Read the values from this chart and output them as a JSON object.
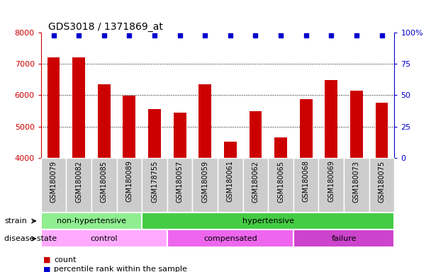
{
  "title": "GDS3018 / 1371869_at",
  "samples": [
    "GSM180079",
    "GSM180082",
    "GSM180085",
    "GSM180089",
    "GSM178755",
    "GSM180057",
    "GSM180059",
    "GSM180061",
    "GSM180062",
    "GSM180065",
    "GSM180068",
    "GSM180069",
    "GSM180073",
    "GSM180075"
  ],
  "counts": [
    7200,
    7200,
    6350,
    5980,
    5560,
    5450,
    6350,
    4510,
    5490,
    4650,
    5870,
    6490,
    6150,
    5770
  ],
  "percentile_ranks": [
    98,
    98,
    98,
    98,
    98,
    98,
    98,
    98,
    98,
    98,
    98,
    98,
    98,
    98
  ],
  "bar_color": "#cc0000",
  "dot_color": "#0000cc",
  "ylim_left": [
    4000,
    8000
  ],
  "ylim_right": [
    0,
    100
  ],
  "yticks_left": [
    4000,
    5000,
    6000,
    7000,
    8000
  ],
  "yticks_right": [
    0,
    25,
    50,
    75,
    100
  ],
  "right_tick_labels": [
    "0",
    "25",
    "50",
    "75",
    "100%"
  ],
  "grid_values": [
    5000,
    6000,
    7000
  ],
  "strain_groups": [
    {
      "label": "non-hypertensive",
      "start": 0,
      "end": 4,
      "color": "#90ee90"
    },
    {
      "label": "hypertensive",
      "start": 4,
      "end": 14,
      "color": "#44cc44"
    }
  ],
  "disease_groups": [
    {
      "label": "control",
      "start": 0,
      "end": 5,
      "color": "#ffaaff"
    },
    {
      "label": "compensated",
      "start": 5,
      "end": 10,
      "color": "#ee66ee"
    },
    {
      "label": "failure",
      "start": 10,
      "end": 14,
      "color": "#cc44cc"
    }
  ],
  "strain_label": "strain",
  "disease_label": "disease state",
  "legend_count_label": "count",
  "legend_pct_label": "percentile rank within the sample",
  "background_color": "#ffffff",
  "tick_bg_color": "#cccccc",
  "left_axis_color": "#cc0000",
  "right_axis_color": "#0000cc",
  "bar_width": 0.5,
  "title_fontsize": 10,
  "tick_fontsize": 7,
  "ytick_fontsize": 8,
  "annot_fontsize": 8,
  "legend_fontsize": 8
}
